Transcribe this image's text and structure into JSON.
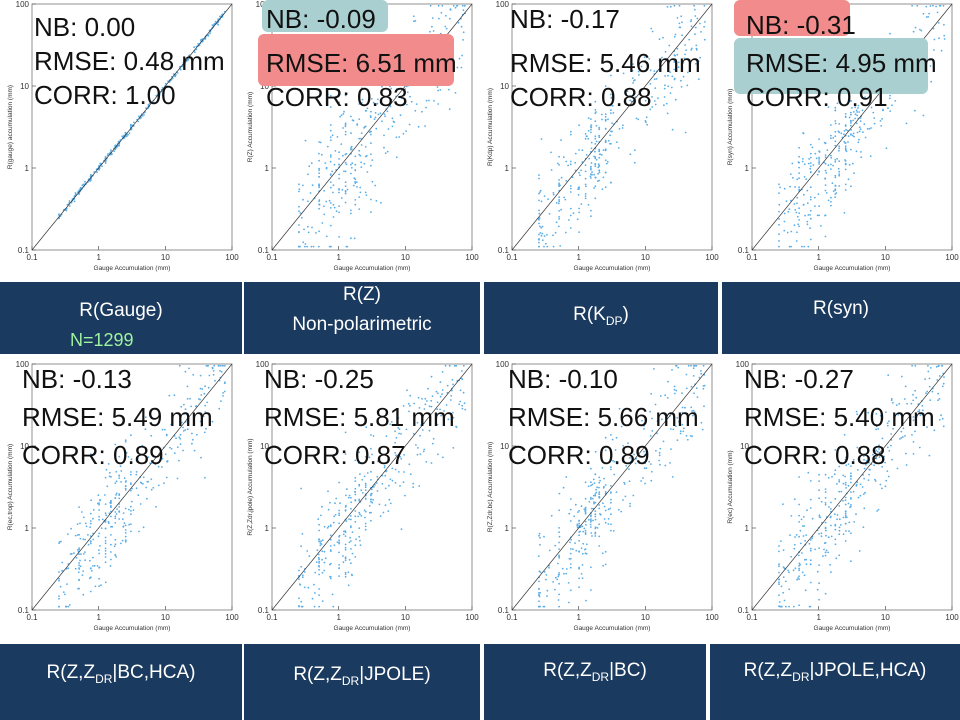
{
  "chart_data": [
    {
      "type": "scatter",
      "id": "gauge",
      "xlabel": "Gauge Accumulation (mm)",
      "ylabel": "R(gauge) accumulation (mm)",
      "xlim": [
        0.1,
        100
      ],
      "ylim": [
        0.1,
        100
      ],
      "log": true,
      "ticks": [
        "0.1",
        "1",
        "10",
        "100"
      ],
      "stats": {
        "nb": "NB: 0.00",
        "rmse": "RMSE: 0.48 mm",
        "corr": "CORR: 1.00"
      }
    },
    {
      "type": "scatter",
      "id": "rz",
      "xlabel": "Gauge Accumulation (mm)",
      "ylabel": "R(Z) Accumulation (mm)",
      "xlim": [
        0.1,
        100
      ],
      "ylim": [
        0.1,
        100
      ],
      "log": true,
      "ticks": [
        "0.1",
        "1",
        "10",
        "100"
      ],
      "stats": {
        "nb": "NB: -0.09",
        "rmse": "RMSE: 6.51 mm",
        "corr": "CORR: 0.83"
      }
    },
    {
      "type": "scatter",
      "id": "kdp",
      "xlabel": "Gauge Accumulation (mm)",
      "ylabel": "R(Kdp) Accumulation (mm)",
      "xlim": [
        0.1,
        100
      ],
      "ylim": [
        0.1,
        100
      ],
      "log": true,
      "ticks": [
        "0.1",
        "1",
        "10",
        "100"
      ],
      "stats": {
        "nb": "NB: -0.17",
        "rmse": "RMSE: 5.46 mm",
        "corr": "CORR: 0.88"
      }
    },
    {
      "type": "scatter",
      "id": "syn",
      "xlabel": "Gauge Accumulation (mm)",
      "ylabel": "R(syn) Accumulation (mm)",
      "xlim": [
        0.1,
        100
      ],
      "ylim": [
        0.1,
        100
      ],
      "log": true,
      "ticks": [
        "0.1",
        "1",
        "10",
        "100"
      ],
      "stats": {
        "nb": "NB: -0.31",
        "rmse": "RMSE: 4.95 mm",
        "corr": "CORR: 0.91"
      }
    },
    {
      "type": "scatter",
      "id": "bchca",
      "xlabel": "Gauge Accumulation (mm)",
      "ylabel": "R(ec,trop) Accumulation (mm)",
      "xlim": [
        0.1,
        100
      ],
      "ylim": [
        0.1,
        100
      ],
      "log": true,
      "ticks": [
        "0.1",
        "1",
        "10",
        "100"
      ],
      "stats": {
        "nb": "NB: -0.13",
        "rmse": "RMSE: 5.49 mm",
        "corr": "CORR: 0.89"
      }
    },
    {
      "type": "scatter",
      "id": "jpole",
      "xlabel": "Gauge Accumulation (mm)",
      "ylabel": "R(Z,Zdr,jpole) Accumulation (mm)",
      "xlim": [
        0.1,
        100
      ],
      "ylim": [
        0.1,
        100
      ],
      "log": true,
      "ticks": [
        "0.1",
        "1",
        "10",
        "100"
      ],
      "stats": {
        "nb": "NB: -0.25",
        "rmse": "RMSE: 5.81 mm",
        "corr": "CORR: 0.87"
      }
    },
    {
      "type": "scatter",
      "id": "bc",
      "xlabel": "Gauge Accumulation (mm)",
      "ylabel": "R(Z,Zdr,bc) Accumulation (mm)",
      "xlim": [
        0.1,
        100
      ],
      "ylim": [
        0.1,
        100
      ],
      "log": true,
      "ticks": [
        "0.1",
        "1",
        "10",
        "100"
      ],
      "stats": {
        "nb": "NB: -0.10",
        "rmse": "RMSE: 5.66 mm",
        "corr": "CORR: 0.89"
      }
    },
    {
      "type": "scatter",
      "id": "jpolehca",
      "xlabel": "Gauge Accumulation (mm)",
      "ylabel": "R(ec) Accumulation (mm)",
      "xlim": [
        0.1,
        100
      ],
      "ylim": [
        0.1,
        100
      ],
      "log": true,
      "ticks": [
        "0.1",
        "1",
        "10",
        "100"
      ],
      "stats": {
        "nb": "NB: -0.27",
        "rmse": "RMSE: 5.40 mm",
        "corr": "CORR: 0.88"
      }
    }
  ],
  "banners": {
    "gauge": {
      "label": "R(Gauge)",
      "count": "N=1299"
    },
    "rz": {
      "line1": "R(Z)",
      "line2": "Non-polarimetric"
    },
    "kdp": {
      "main": "R(K",
      "sub": "DP",
      "tail": ")"
    },
    "syn": {
      "main": "R(syn)"
    },
    "bchca": {
      "main": "R(Z,Z",
      "sub": "DR",
      "tail": "|BC,HCA)"
    },
    "jpole": {
      "main": "R(Z,Z",
      "sub": "DR",
      "tail": "|JPOLE)"
    },
    "bc": {
      "main": "R(Z,Z",
      "sub": "DR",
      "tail": "|BC)"
    },
    "jpolehca": {
      "main": "R(Z,Z",
      "sub": "DR",
      "tail": "|JPOLE,HCA)"
    }
  },
  "colors": {
    "points": "#5aaee8",
    "banner": "#1b3a5f",
    "highlight_red": "#f28b8b",
    "highlight_teal": "#a9cfd0",
    "count": "#9ff29f"
  }
}
